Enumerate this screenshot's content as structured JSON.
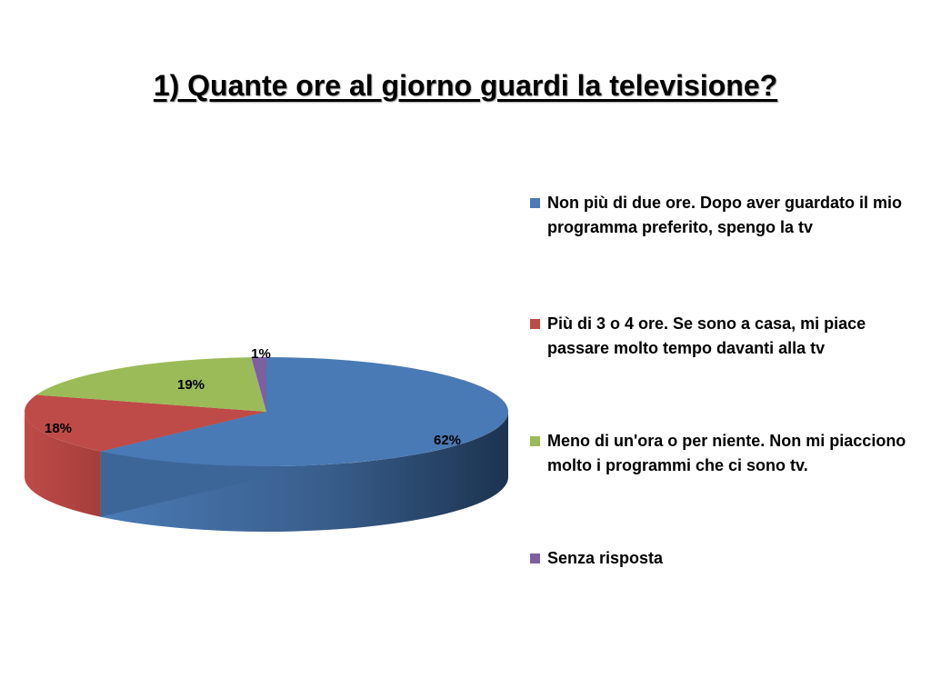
{
  "title": "1) Quante ore al giorno guardi la televisione?",
  "chart_data": {
    "type": "pie",
    "title": "1) Quante ore al giorno guardi la televisione?",
    "series": [
      {
        "name": "Non più di due ore. Dopo aver guardato il mio programma preferito, spengo la tv",
        "value": 62,
        "label": "62%",
        "color": "#4a7ab5"
      },
      {
        "name": "Più di 3 o 4 ore. Se sono a casa, mi piace passare molto tempo davanti alla tv",
        "value": 18,
        "label": "18%",
        "color": "#be4b48"
      },
      {
        "name": "Meno di un'ora o per niente. Non mi piacciono molto i programmi che ci sono tv.",
        "value": 19,
        "label": "19%",
        "color": "#9bbb59"
      },
      {
        "name": "Senza risposta",
        "value": 1,
        "label": "1%",
        "color": "#7e5fa0"
      }
    ],
    "legend_position": "right",
    "style": "3d"
  }
}
